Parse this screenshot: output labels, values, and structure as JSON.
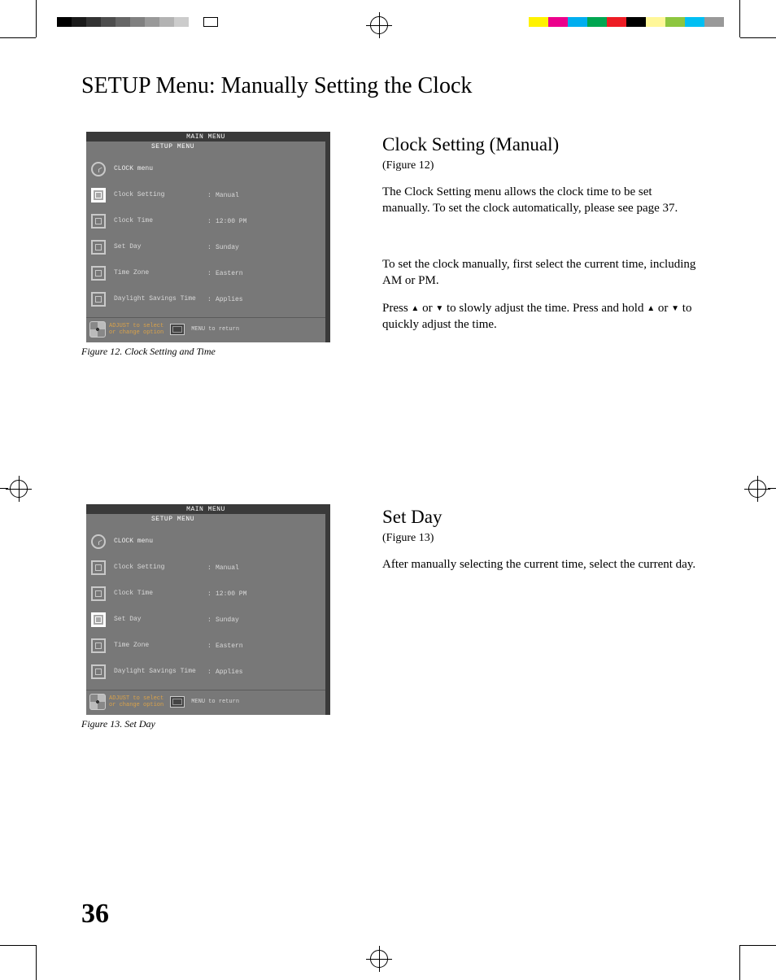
{
  "page_title": "SETUP Menu: Manually Setting the Clock",
  "page_number": "36",
  "reg_left_colors": [
    "#000000",
    "#1a1a1a",
    "#333333",
    "#4d4d4d",
    "#666666",
    "#808080",
    "#999999",
    "#b3b3b3",
    "#cccccc",
    "#ffffff",
    "#ffffff"
  ],
  "reg_left_border_last": true,
  "reg_right_colors": [
    "#fff200",
    "#ec008c",
    "#00aeef",
    "#00a651",
    "#ed1c24",
    "#000000",
    "#fff799",
    "#8dc63f",
    "#00bff3",
    "#999999"
  ],
  "sections": [
    {
      "heading": "Clock Setting (Manual)",
      "figref": "(Figure 12)",
      "paragraphs": [
        "The Clock Setting menu allows the clock time to be set manually.  To set the clock automatically, please see page 37.",
        "",
        "To set the clock manually, first select the current time, including AM or PM.",
        "Press ▲ or  ▼ to slowly adjust the time.  Press and hold ▲ or ▼ to quickly adjust the time."
      ],
      "figure": {
        "title1": "MAIN MENU",
        "title2": "SETUP MENU",
        "header_label": "CLOCK menu",
        "rows": [
          {
            "label": "Clock Setting",
            "value": "Manual",
            "selected": true
          },
          {
            "label": "Clock Time",
            "value": "12:00 PM",
            "selected": false
          },
          {
            "label": "Set Day",
            "value": "Sunday",
            "selected": false
          },
          {
            "label": "Time Zone",
            "value": "Eastern",
            "selected": false
          },
          {
            "label": "Daylight Savings Time",
            "value": "Applies",
            "selected": false
          }
        ],
        "foot_line1": "ADJUST to select",
        "foot_line2": "or change option",
        "foot_return": "MENU to return",
        "caption": "Figure 12.  Clock Setting and Time"
      }
    },
    {
      "heading": "Set Day",
      "figref": "(Figure 13)",
      "paragraphs": [
        "After manually selecting the current time, select the current day."
      ],
      "figure": {
        "title1": "MAIN MENU",
        "title2": "SETUP MENU",
        "header_label": "CLOCK menu",
        "rows": [
          {
            "label": "Clock Setting",
            "value": "Manual",
            "selected": false
          },
          {
            "label": "Clock Time",
            "value": "12:00 PM",
            "selected": false
          },
          {
            "label": "Set Day",
            "value": "Sunday",
            "selected": true
          },
          {
            "label": "Time Zone",
            "value": "Eastern",
            "selected": false
          },
          {
            "label": "Daylight Savings Time",
            "value": "Applies",
            "selected": false
          }
        ],
        "foot_line1": "ADJUST to select",
        "foot_line2": "or change option",
        "foot_return": "MENU to return",
        "caption": "Figure 13.  Set Day"
      }
    }
  ]
}
